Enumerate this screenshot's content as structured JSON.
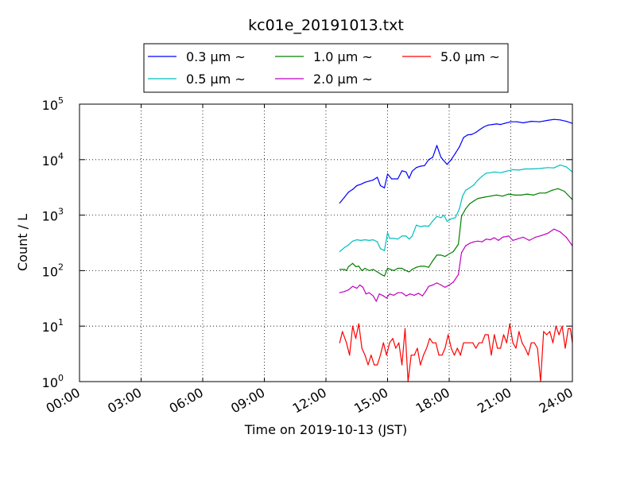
{
  "chart_data": {
    "type": "line",
    "title": "kc01e_20191013.txt",
    "xlabel": "Time on 2019-10-13 (JST)",
    "ylabel": "Count / L",
    "xlim": [
      0,
      24
    ],
    "ylim": [
      1,
      100000
    ],
    "yscale": "log",
    "grid": true,
    "legend_position": "top-center",
    "x_ticks": [
      {
        "value": 0,
        "label": "00:00"
      },
      {
        "value": 3,
        "label": "03:00"
      },
      {
        "value": 6,
        "label": "06:00"
      },
      {
        "value": 9,
        "label": "09:00"
      },
      {
        "value": 12,
        "label": "12:00"
      },
      {
        "value": 15,
        "label": "15:00"
      },
      {
        "value": 18,
        "label": "18:00"
      },
      {
        "value": 21,
        "label": "21:00"
      },
      {
        "value": 24,
        "label": "24:00"
      }
    ],
    "y_ticks": [
      {
        "value": 1,
        "base": "10",
        "exp": "0"
      },
      {
        "value": 10,
        "base": "10",
        "exp": "1"
      },
      {
        "value": 100,
        "base": "10",
        "exp": "2"
      },
      {
        "value": 1000,
        "base": "10",
        "exp": "3"
      },
      {
        "value": 10000,
        "base": "10",
        "exp": "4"
      },
      {
        "value": 100000,
        "base": "10",
        "exp": "5"
      }
    ],
    "series": [
      {
        "name": "0.3 μm ~",
        "color": "#0000ff",
        "points": [
          [
            12.67,
            1650
          ],
          [
            12.9,
            2100
          ],
          [
            13.1,
            2600
          ],
          [
            13.3,
            2900
          ],
          [
            13.5,
            3400
          ],
          [
            13.7,
            3600
          ],
          [
            13.9,
            3900
          ],
          [
            14.1,
            4100
          ],
          [
            14.3,
            4300
          ],
          [
            14.5,
            4800
          ],
          [
            14.65,
            3400
          ],
          [
            14.85,
            3100
          ],
          [
            15.0,
            5500
          ],
          [
            15.2,
            4500
          ],
          [
            15.5,
            4500
          ],
          [
            15.7,
            6300
          ],
          [
            15.9,
            6000
          ],
          [
            16.05,
            4600
          ],
          [
            16.2,
            6200
          ],
          [
            16.4,
            7200
          ],
          [
            16.6,
            7600
          ],
          [
            16.8,
            7800
          ],
          [
            17.0,
            10000
          ],
          [
            17.2,
            11000
          ],
          [
            17.4,
            18000
          ],
          [
            17.6,
            11000
          ],
          [
            17.75,
            9500
          ],
          [
            17.9,
            8200
          ],
          [
            18.1,
            10000
          ],
          [
            18.3,
            13000
          ],
          [
            18.5,
            17000
          ],
          [
            18.7,
            25000
          ],
          [
            18.9,
            28000
          ],
          [
            19.1,
            28500
          ],
          [
            19.3,
            31000
          ],
          [
            19.5,
            35000
          ],
          [
            19.7,
            39000
          ],
          [
            19.9,
            42000
          ],
          [
            20.1,
            43000
          ],
          [
            20.3,
            44000
          ],
          [
            20.5,
            43000
          ],
          [
            20.7,
            45000
          ],
          [
            21.0,
            48000
          ],
          [
            21.3,
            48000
          ],
          [
            21.6,
            46000
          ],
          [
            22.0,
            49000
          ],
          [
            22.4,
            48000
          ],
          [
            22.8,
            51000
          ],
          [
            23.1,
            53000
          ],
          [
            23.4,
            52000
          ],
          [
            23.7,
            49000
          ],
          [
            24.0,
            45000
          ]
        ]
      },
      {
        "name": "0.5 μm ~",
        "color": "#00bfbf",
        "points": [
          [
            12.67,
            220
          ],
          [
            12.9,
            260
          ],
          [
            13.1,
            290
          ],
          [
            13.3,
            340
          ],
          [
            13.5,
            360
          ],
          [
            13.7,
            350
          ],
          [
            13.9,
            360
          ],
          [
            14.1,
            350
          ],
          [
            14.3,
            360
          ],
          [
            14.5,
            330
          ],
          [
            14.65,
            250
          ],
          [
            14.85,
            230
          ],
          [
            15.0,
            480
          ],
          [
            15.1,
            380
          ],
          [
            15.3,
            380
          ],
          [
            15.5,
            370
          ],
          [
            15.7,
            420
          ],
          [
            15.9,
            420
          ],
          [
            16.05,
            370
          ],
          [
            16.2,
            420
          ],
          [
            16.4,
            660
          ],
          [
            16.6,
            620
          ],
          [
            16.8,
            640
          ],
          [
            17.0,
            630
          ],
          [
            17.2,
            780
          ],
          [
            17.4,
            950
          ],
          [
            17.6,
            900
          ],
          [
            17.75,
            1000
          ],
          [
            17.9,
            770
          ],
          [
            18.1,
            860
          ],
          [
            18.3,
            900
          ],
          [
            18.5,
            1300
          ],
          [
            18.65,
            2200
          ],
          [
            18.8,
            2800
          ],
          [
            19.0,
            3100
          ],
          [
            19.2,
            3500
          ],
          [
            19.4,
            4300
          ],
          [
            19.6,
            5000
          ],
          [
            19.8,
            5700
          ],
          [
            20.0,
            5800
          ],
          [
            20.2,
            6000
          ],
          [
            20.5,
            5800
          ],
          [
            20.8,
            6200
          ],
          [
            21.1,
            6600
          ],
          [
            21.4,
            6500
          ],
          [
            21.7,
            6800
          ],
          [
            22.0,
            6800
          ],
          [
            22.4,
            6900
          ],
          [
            22.8,
            7200
          ],
          [
            23.1,
            7100
          ],
          [
            23.4,
            8000
          ],
          [
            23.7,
            7400
          ],
          [
            24.0,
            6000
          ]
        ]
      },
      {
        "name": "1.0 μm ~",
        "color": "#008000",
        "points": [
          [
            12.67,
            105
          ],
          [
            12.9,
            105
          ],
          [
            13.0,
            100
          ],
          [
            13.1,
            118
          ],
          [
            13.3,
            135
          ],
          [
            13.45,
            118
          ],
          [
            13.6,
            120
          ],
          [
            13.75,
            100
          ],
          [
            13.9,
            110
          ],
          [
            14.1,
            100
          ],
          [
            14.3,
            105
          ],
          [
            14.5,
            95
          ],
          [
            14.7,
            85
          ],
          [
            14.85,
            80
          ],
          [
            15.0,
            110
          ],
          [
            15.15,
            105
          ],
          [
            15.3,
            100
          ],
          [
            15.5,
            110
          ],
          [
            15.7,
            110
          ],
          [
            15.9,
            100
          ],
          [
            16.05,
            95
          ],
          [
            16.2,
            105
          ],
          [
            16.4,
            115
          ],
          [
            16.6,
            120
          ],
          [
            16.8,
            120
          ],
          [
            17.0,
            115
          ],
          [
            17.2,
            150
          ],
          [
            17.4,
            190
          ],
          [
            17.6,
            190
          ],
          [
            17.8,
            180
          ],
          [
            18.0,
            200
          ],
          [
            18.2,
            220
          ],
          [
            18.45,
            300
          ],
          [
            18.6,
            950
          ],
          [
            18.8,
            1300
          ],
          [
            19.0,
            1600
          ],
          [
            19.2,
            1800
          ],
          [
            19.4,
            2000
          ],
          [
            19.7,
            2100
          ],
          [
            20.0,
            2200
          ],
          [
            20.3,
            2300
          ],
          [
            20.6,
            2200
          ],
          [
            20.9,
            2400
          ],
          [
            21.2,
            2300
          ],
          [
            21.5,
            2300
          ],
          [
            21.8,
            2400
          ],
          [
            22.1,
            2300
          ],
          [
            22.4,
            2500
          ],
          [
            22.7,
            2500
          ],
          [
            23.0,
            2800
          ],
          [
            23.3,
            3000
          ],
          [
            23.6,
            2700
          ],
          [
            24.0,
            1900
          ]
        ]
      },
      {
        "name": "2.0 μm ~",
        "color": "#bf00bf",
        "points": [
          [
            12.67,
            40
          ],
          [
            12.9,
            42
          ],
          [
            13.1,
            45
          ],
          [
            13.3,
            52
          ],
          [
            13.5,
            48
          ],
          [
            13.65,
            55
          ],
          [
            13.8,
            50
          ],
          [
            13.95,
            38
          ],
          [
            14.1,
            40
          ],
          [
            14.3,
            35
          ],
          [
            14.45,
            28
          ],
          [
            14.6,
            38
          ],
          [
            14.8,
            35
          ],
          [
            14.95,
            32
          ],
          [
            15.1,
            38
          ],
          [
            15.3,
            36
          ],
          [
            15.5,
            40
          ],
          [
            15.7,
            40
          ],
          [
            15.9,
            35
          ],
          [
            16.1,
            38
          ],
          [
            16.3,
            36
          ],
          [
            16.5,
            39
          ],
          [
            16.7,
            35
          ],
          [
            16.85,
            42
          ],
          [
            17.0,
            52
          ],
          [
            17.2,
            55
          ],
          [
            17.4,
            60
          ],
          [
            17.6,
            55
          ],
          [
            17.8,
            50
          ],
          [
            18.0,
            55
          ],
          [
            18.2,
            62
          ],
          [
            18.45,
            85
          ],
          [
            18.6,
            210
          ],
          [
            18.8,
            280
          ],
          [
            19.0,
            310
          ],
          [
            19.2,
            330
          ],
          [
            19.4,
            340
          ],
          [
            19.6,
            330
          ],
          [
            19.8,
            370
          ],
          [
            20.0,
            360
          ],
          [
            20.2,
            390
          ],
          [
            20.4,
            350
          ],
          [
            20.6,
            400
          ],
          [
            20.9,
            420
          ],
          [
            21.1,
            350
          ],
          [
            21.4,
            380
          ],
          [
            21.6,
            400
          ],
          [
            21.9,
            350
          ],
          [
            22.2,
            400
          ],
          [
            22.5,
            430
          ],
          [
            22.8,
            470
          ],
          [
            23.1,
            560
          ],
          [
            23.4,
            500
          ],
          [
            23.7,
            400
          ],
          [
            24.0,
            280
          ]
        ]
      },
      {
        "name": "5.0 μm ~",
        "color": "#ff0000",
        "points": [
          [
            12.67,
            5
          ],
          [
            12.8,
            8
          ],
          [
            13.0,
            5
          ],
          [
            13.15,
            3
          ],
          [
            13.3,
            10
          ],
          [
            13.45,
            6
          ],
          [
            13.6,
            11
          ],
          [
            13.75,
            4
          ],
          [
            13.9,
            3
          ],
          [
            14.05,
            2
          ],
          [
            14.2,
            3
          ],
          [
            14.35,
            2
          ],
          [
            14.5,
            2
          ],
          [
            14.65,
            3
          ],
          [
            14.8,
            5
          ],
          [
            14.95,
            3
          ],
          [
            15.1,
            5
          ],
          [
            15.25,
            6
          ],
          [
            15.4,
            4
          ],
          [
            15.55,
            5
          ],
          [
            15.7,
            2
          ],
          [
            15.85,
            9
          ],
          [
            16.0,
            1
          ],
          [
            16.15,
            3
          ],
          [
            16.3,
            3
          ],
          [
            16.45,
            4
          ],
          [
            16.6,
            2
          ],
          [
            16.75,
            3
          ],
          [
            16.9,
            4
          ],
          [
            17.05,
            6
          ],
          [
            17.2,
            5
          ],
          [
            17.35,
            5
          ],
          [
            17.5,
            3
          ],
          [
            17.65,
            3
          ],
          [
            17.8,
            4
          ],
          [
            17.95,
            7
          ],
          [
            18.1,
            4
          ],
          [
            18.25,
            3
          ],
          [
            18.4,
            4
          ],
          [
            18.55,
            3
          ],
          [
            18.7,
            5
          ],
          [
            18.85,
            5
          ],
          [
            19.0,
            5
          ],
          [
            19.15,
            5
          ],
          [
            19.3,
            4
          ],
          [
            19.45,
            5
          ],
          [
            19.6,
            5
          ],
          [
            19.75,
            7
          ],
          [
            19.9,
            7
          ],
          [
            20.05,
            3
          ],
          [
            20.2,
            7
          ],
          [
            20.35,
            4
          ],
          [
            20.5,
            4
          ],
          [
            20.65,
            7
          ],
          [
            20.8,
            5
          ],
          [
            20.95,
            11
          ],
          [
            21.1,
            5
          ],
          [
            21.25,
            4
          ],
          [
            21.4,
            8
          ],
          [
            21.55,
            5
          ],
          [
            21.7,
            4
          ],
          [
            21.85,
            3
          ],
          [
            22.0,
            5
          ],
          [
            22.15,
            5
          ],
          [
            22.3,
            4
          ],
          [
            22.45,
            1
          ],
          [
            22.6,
            8
          ],
          [
            22.75,
            7
          ],
          [
            22.9,
            8
          ],
          [
            23.05,
            5
          ],
          [
            23.2,
            10
          ],
          [
            23.35,
            7
          ],
          [
            23.5,
            10
          ],
          [
            23.65,
            4
          ],
          [
            23.8,
            9
          ],
          [
            23.9,
            9
          ],
          [
            24.0,
            5
          ]
        ]
      }
    ]
  }
}
